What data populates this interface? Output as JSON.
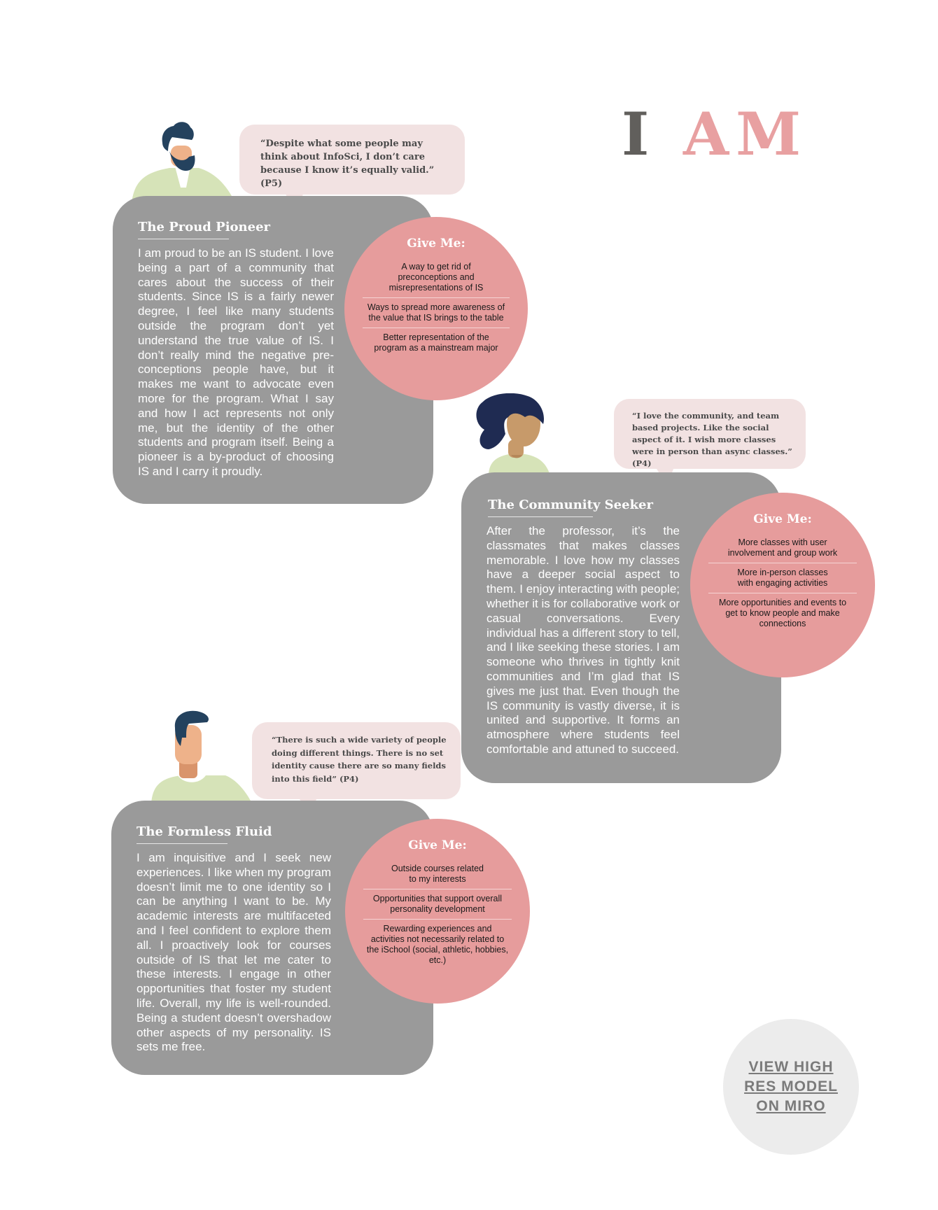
{
  "header": {
    "title_i": "I",
    "title_am": "AM"
  },
  "personas": [
    {
      "title": "The Proud Pioneer",
      "quote": "“Despite what some people may think about InfoSci, I don’t care because I know it’s equally valid.” (P5)",
      "body": "I am proud to be an IS student. I love being a part of a community that cares about the success of their students. Since IS is a fairly newer degree, I feel like many students outside the program don’t yet understand the true value of IS. I don’t really mind the negative pre-conceptions people have, but it makes me want to advocate even more for the program. What I say and how I act represents not only me, but the identity of the other students and program itself. Being a pioneer is a by-product of choosing IS and I carry it proudly.",
      "give_title": "Give Me:",
      "give_items": [
        "A way to get rid of preconceptions and misrepresentations of IS",
        "Ways to spread more awareness of the value that IS brings to the table",
        "Better representation of the program as a mainstream major"
      ]
    },
    {
      "title": "The Community Seeker",
      "quote": "“I love the community, and team based projects. Like the social aspect of it. I wish more classes were in person than async classes.” (P4)",
      "body": "After the professor, it’s the classmates that makes classes memorable. I love how my classes have a deeper social aspect to them. I enjoy interacting with people; whether it is for collaborative work or casual conversations. Every individual has a different story to tell, and I like seeking these stories. I am someone who thrives in tightly knit communities and I’m glad that IS gives me just that. Even though the IS community is vastly diverse, it is united and supportive. It forms an atmosphere where students feel comfortable and attuned to succeed.",
      "give_title": "Give Me:",
      "give_items": [
        "More classes with user involvement and group work",
        "More in-person classes with engaging activities",
        "More opportunities and events to get to know people and make connections"
      ]
    },
    {
      "title": "The Formless Fluid",
      "quote": "“There is such a wide variety of people doing different things. There is no set identity cause there are so many fields into this field” (P4)",
      "body": "I am inquisitive and I seek new experiences. I like when my program doesn’t limit me to one identity so I can be anything I want to be. My academic interests are multifaceted and I feel confident to explore them all. I proactively look for courses outside of IS that let me cater to these interests. I engage in other opportunities that foster my student life. Overall, my life is well-rounded. Being a student doesn’t overshadow other aspects of my personality. IS sets me free.",
      "give_title": "Give Me:",
      "give_items": [
        "Outside courses related to my interests",
        "Opportunities that support overall personality development",
        "Rewarding experiences and activities not necessarily related to the iSchool (social, athletic, hobbies, etc.)"
      ]
    }
  ],
  "cta": {
    "label": "VIEW HIGH RES MODEL ON MIRO"
  },
  "colors": {
    "card": "#9a9a9a",
    "give_circle": "#e69c9c",
    "quote_bubble": "#f2e2e2",
    "title_i": "#615f5c",
    "title_am": "#e8a0a1",
    "shirt": "#d6e3b8",
    "hair": "#24425e",
    "skin": "#eeb28a"
  }
}
